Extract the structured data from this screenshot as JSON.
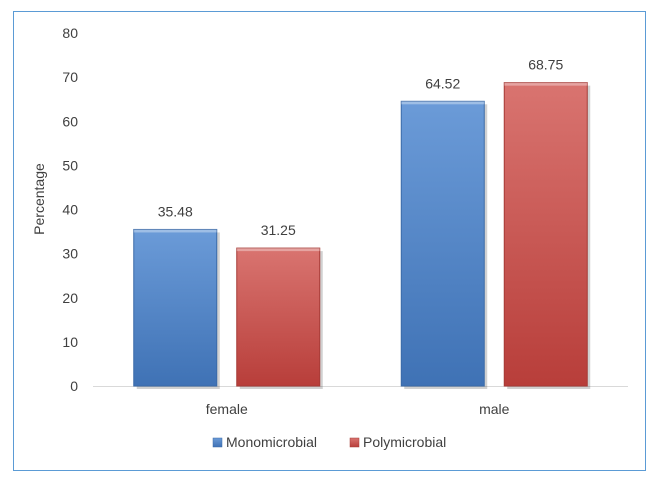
{
  "chart_data": {
    "type": "bar",
    "title": "",
    "xlabel": "",
    "ylabel": "Percentage",
    "categories": [
      "female",
      "male"
    ],
    "ylim": [
      0,
      80
    ],
    "yticks": [
      0,
      10,
      20,
      30,
      40,
      50,
      60,
      70,
      80
    ],
    "grid": false,
    "legend_position": "bottom",
    "series": [
      {
        "name": "Monomicrobial",
        "values": [
          35.48,
          64.52
        ],
        "color": "#4f81bd"
      },
      {
        "name": "Polymicrobial",
        "values": [
          31.25,
          68.75
        ],
        "color": "#c0504d"
      }
    ],
    "data_labels": [
      [
        "35.48",
        "64.52"
      ],
      [
        "31.25",
        "68.75"
      ]
    ]
  }
}
